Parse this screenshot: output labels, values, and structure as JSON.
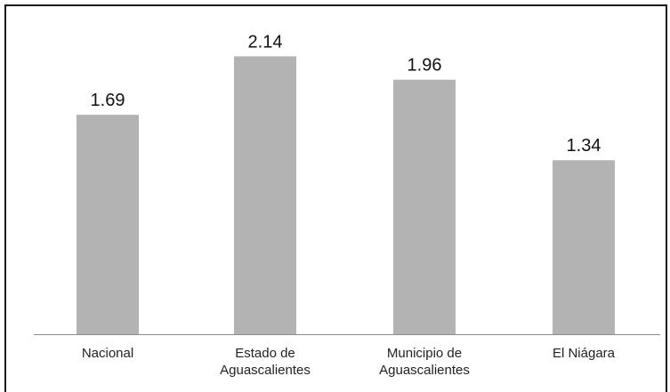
{
  "chart_data": {
    "type": "bar",
    "categories": [
      [
        "Nacional"
      ],
      [
        "Estado de",
        "Aguascalientes"
      ],
      [
        "Municipio de",
        "Aguascalientes"
      ],
      [
        "El Niágara"
      ]
    ],
    "values": [
      1.69,
      2.14,
      1.96,
      1.34
    ],
    "value_labels": [
      "1.69",
      "2.14",
      "1.96",
      "1.34"
    ],
    "title": "",
    "xlabel": "",
    "ylabel": "",
    "ylim": [
      0,
      2.3
    ],
    "grid": false,
    "legend": "none",
    "bar_color": "#b3b3b3",
    "axis_color": "#8c8c8c"
  }
}
